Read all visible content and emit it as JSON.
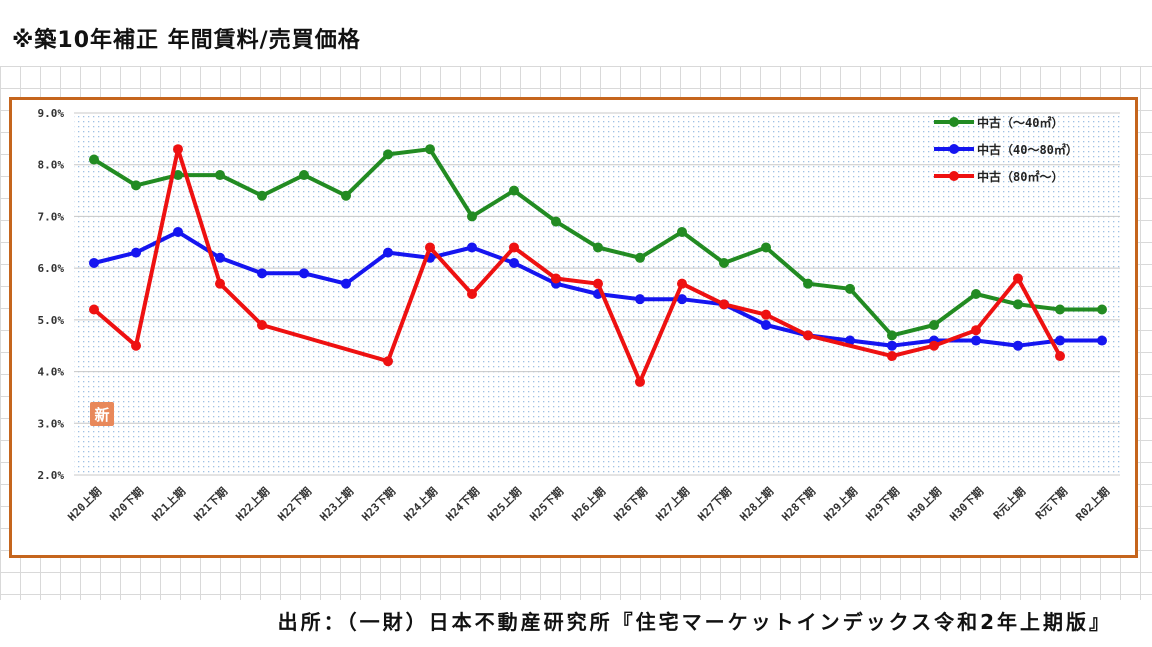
{
  "page": {
    "title": "※築10年補正 年間賃料/売買価格",
    "source": "出所：（一財）日本不動産研究所『住宅マーケットインデックス令和2年上期版』"
  },
  "colors": {
    "frame": "#c5651d",
    "grid": "#c8c8c8",
    "dots": "#9fc1e4"
  },
  "chart_data": {
    "type": "line",
    "title": "",
    "xlabel": "",
    "ylabel": "",
    "ylim": [
      2.0,
      9.0
    ],
    "yticks": [
      "9.0%",
      "8.0%",
      "7.0%",
      "6.0%",
      "5.0%",
      "4.0%",
      "3.0%",
      "2.0%"
    ],
    "grid": true,
    "legend_position": "top-right",
    "badge": "新",
    "categories": [
      "H20上期",
      "H20下期",
      "H21上期",
      "H21下期",
      "H22上期",
      "H22下期",
      "H23上期",
      "H23下期",
      "H24上期",
      "H24下期",
      "H25上期",
      "H25下期",
      "H26上期",
      "H26下期",
      "H27上期",
      "H27下期",
      "H28上期",
      "H28下期",
      "H29上期",
      "H29下期",
      "H30上期",
      "H30下期",
      "R元上期",
      "R元下期",
      "R02上期"
    ],
    "series": [
      {
        "name": "中古（～40㎡）",
        "color": "#228b22",
        "values": [
          8.1,
          7.6,
          7.8,
          7.8,
          7.4,
          7.8,
          7.4,
          8.2,
          8.3,
          7.0,
          7.5,
          6.9,
          6.4,
          6.2,
          6.7,
          6.1,
          6.4,
          5.7,
          5.6,
          4.7,
          4.9,
          5.5,
          5.3,
          5.2,
          5.2
        ]
      },
      {
        "name": "中古（40～80㎡）",
        "color": "#1515f0",
        "values": [
          6.1,
          6.3,
          6.7,
          6.2,
          5.9,
          5.9,
          5.7,
          6.3,
          6.2,
          6.4,
          6.1,
          5.7,
          5.5,
          5.4,
          5.4,
          5.3,
          4.9,
          4.7,
          4.6,
          4.5,
          4.6,
          4.6,
          4.5,
          4.6,
          4.6
        ]
      },
      {
        "name": "中古（80㎡～）",
        "color": "#ee1111",
        "values": [
          5.2,
          4.5,
          8.3,
          5.7,
          4.9,
          null,
          null,
          4.2,
          6.4,
          5.5,
          6.4,
          5.8,
          5.7,
          3.8,
          5.7,
          5.3,
          5.1,
          4.7,
          null,
          4.3,
          4.5,
          4.8,
          5.8,
          4.3,
          null
        ]
      }
    ]
  }
}
